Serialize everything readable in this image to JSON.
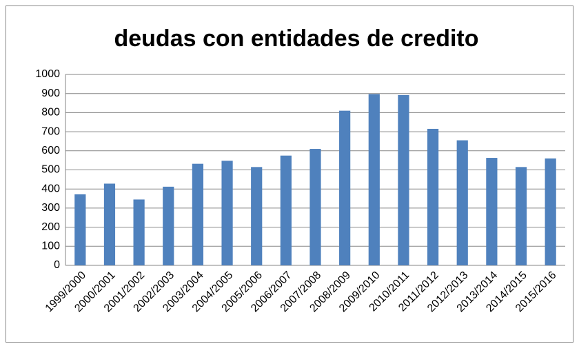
{
  "chart_data": {
    "type": "bar",
    "title": "deudas con entidades de credito",
    "categories": [
      "1999/2000",
      "2000/2001",
      "2001/2002",
      "2002/2003",
      "2003/2004",
      "2004/2005",
      "2005/2006",
      "2006/2007",
      "2007/2008",
      "2008/2009",
      "2009/2010",
      "2010/2011",
      "2011/2012",
      "2012/2013",
      "2013/2014",
      "2014/2015",
      "2015/2016"
    ],
    "values": [
      372,
      428,
      345,
      412,
      532,
      548,
      515,
      575,
      610,
      810,
      897,
      892,
      715,
      655,
      563,
      515,
      560
    ],
    "color": "#4f81bd",
    "ylim": [
      0,
      1000
    ],
    "yticks": [
      0,
      100,
      200,
      300,
      400,
      500,
      600,
      700,
      800,
      900,
      1000
    ],
    "grid": true
  }
}
